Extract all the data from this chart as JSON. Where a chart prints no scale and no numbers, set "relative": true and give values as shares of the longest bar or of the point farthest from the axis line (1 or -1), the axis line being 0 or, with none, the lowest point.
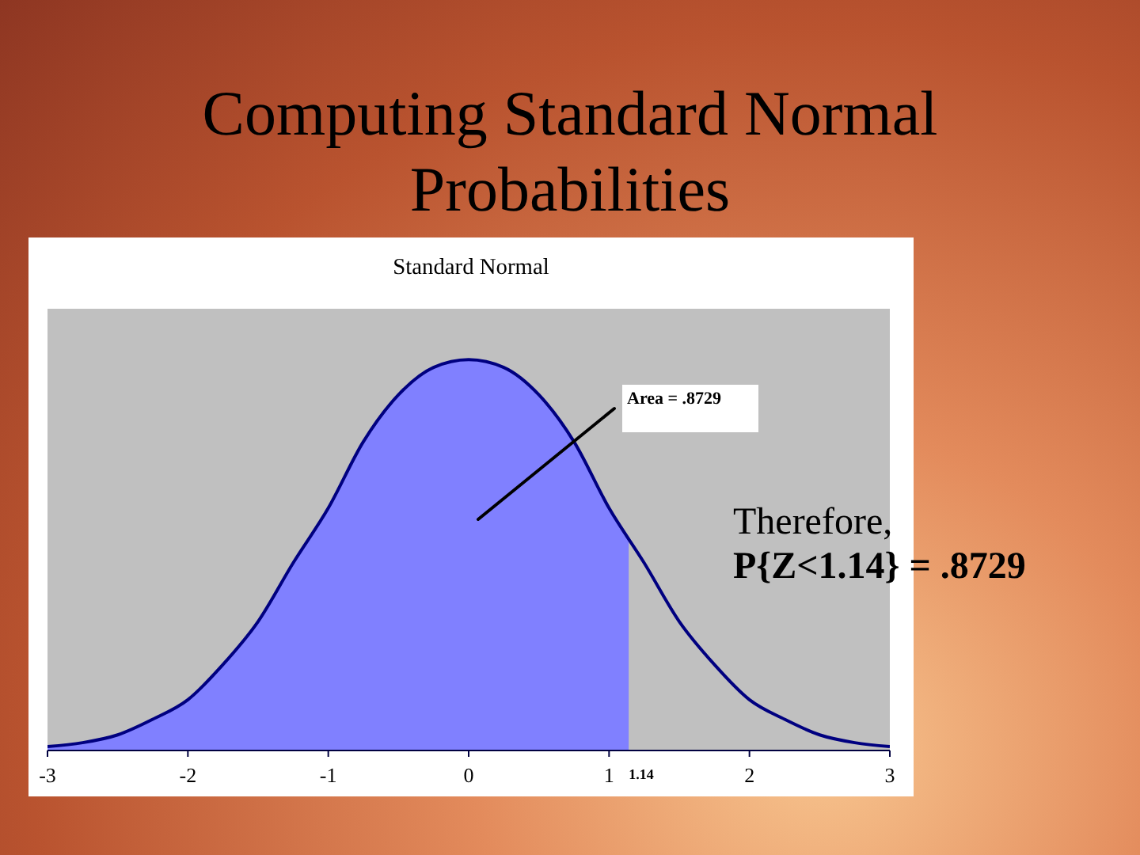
{
  "chart_data": {
    "type": "line",
    "title": "Computing Standard Normal Probabilities",
    "subtitle": "Standard Normal",
    "relative": true,
    "x": [
      -3,
      -2.75,
      -2.5,
      -2.25,
      -2,
      -1.75,
      -1.5,
      -1.25,
      -1,
      -0.75,
      -0.5,
      -0.25,
      0,
      0.25,
      0.5,
      0.75,
      1,
      1.25,
      1.5,
      1.75,
      2,
      2.25,
      2.5,
      2.75,
      3
    ],
    "series": [
      {
        "type": "area",
        "color": "#8080ff",
        "x": [
          -3,
          -2.75,
          -2.5,
          -2.25,
          -2,
          -1.75,
          -1.5,
          -1.25,
          -1,
          -0.75,
          -0.5,
          -0.25,
          0,
          0.25,
          0.5,
          0.75,
          1,
          1.14
        ],
        "values": [
          0.01,
          0.02,
          0.04,
          0.08,
          0.13,
          0.22,
          0.33,
          0.48,
          0.62,
          0.79,
          0.91,
          0.98,
          1,
          0.98,
          0.91,
          0.79,
          0.62,
          0.54
        ]
      },
      {
        "color": "#000080",
        "values": [
          0.01,
          0.02,
          0.04,
          0.08,
          0.13,
          0.22,
          0.33,
          0.48,
          0.62,
          0.79,
          0.91,
          0.98,
          1,
          0.98,
          0.91,
          0.79,
          0.62,
          0.48,
          0.33,
          0.22,
          0.13,
          0.08,
          0.04,
          0.02,
          0.01
        ]
      }
    ],
    "xlim": [
      -3,
      3
    ],
    "xticks": [
      -3,
      -2,
      -1,
      0,
      1,
      2,
      3
    ],
    "annotations": [
      "Area = .8729",
      "1.14",
      "Therefore,",
      "P{Z<1.14} = .8729"
    ]
  }
}
